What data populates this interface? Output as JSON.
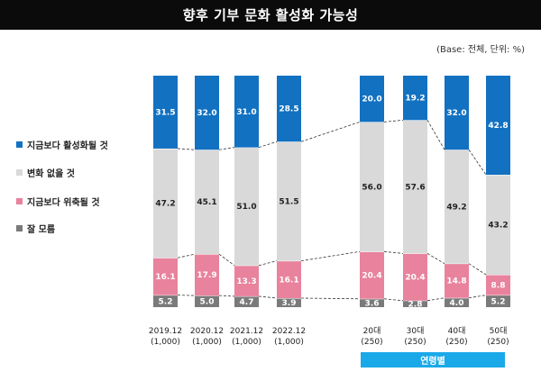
{
  "title": "향후 기부 문화 활성화 가능성",
  "base_note": "(Base: 전체, 단위: %)",
  "group_label": "연령별",
  "colors": {
    "activate": "#1271c1",
    "nochange": "#d9d9d9",
    "shrink": "#e8829d",
    "unknown": "#7a7a7a"
  },
  "legend": [
    {
      "key": "activate",
      "label": "지금보다 활성화될 것"
    },
    {
      "key": "nochange",
      "label": "변화 없을 것"
    },
    {
      "key": "shrink",
      "label": "지금보다 위축될 것"
    },
    {
      "key": "unknown",
      "label": "잘 모름"
    }
  ],
  "chart_data": {
    "type": "bar",
    "stacked": true,
    "normalized": true,
    "title": "향후 기부 문화 활성화 가능성",
    "unit": "%",
    "ylim": [
      0,
      100
    ],
    "categories": [
      {
        "label": "2019.12",
        "base": "(1,000)"
      },
      {
        "label": "2020.12",
        "base": "(1,000)"
      },
      {
        "label": "2021.12",
        "base": "(1,000)"
      },
      {
        "label": "2022.12",
        "base": "(1,000)"
      },
      {
        "label": "20대",
        "base": "(250)"
      },
      {
        "label": "30대",
        "base": "(250)"
      },
      {
        "label": "40대",
        "base": "(250)"
      },
      {
        "label": "50대",
        "base": "(250)"
      }
    ],
    "series": [
      {
        "key": "unknown",
        "name": "잘 모름",
        "values": [
          "5.2",
          "5.0",
          "4.7",
          "3.9",
          "3.6",
          "2.8",
          "4.0",
          "5.2"
        ]
      },
      {
        "key": "shrink",
        "name": "지금보다 위축될 것",
        "values": [
          "16.1",
          "17.9",
          "13.3",
          "16.1",
          "20.4",
          "20.4",
          "14.8",
          "8.8"
        ]
      },
      {
        "key": "nochange",
        "name": "변화 없을 것",
        "values": [
          "47.2",
          "45.1",
          "51.0",
          "51.5",
          "56.0",
          "57.6",
          "49.2",
          "43.2"
        ]
      },
      {
        "key": "activate",
        "name": "지금보다 활성화될 것",
        "values": [
          "31.5",
          "32.0",
          "31.0",
          "28.5",
          "20.0",
          "19.2",
          "32.0",
          "42.8"
        ]
      }
    ],
    "connector_lines": "dashed",
    "legend_position": "left"
  }
}
